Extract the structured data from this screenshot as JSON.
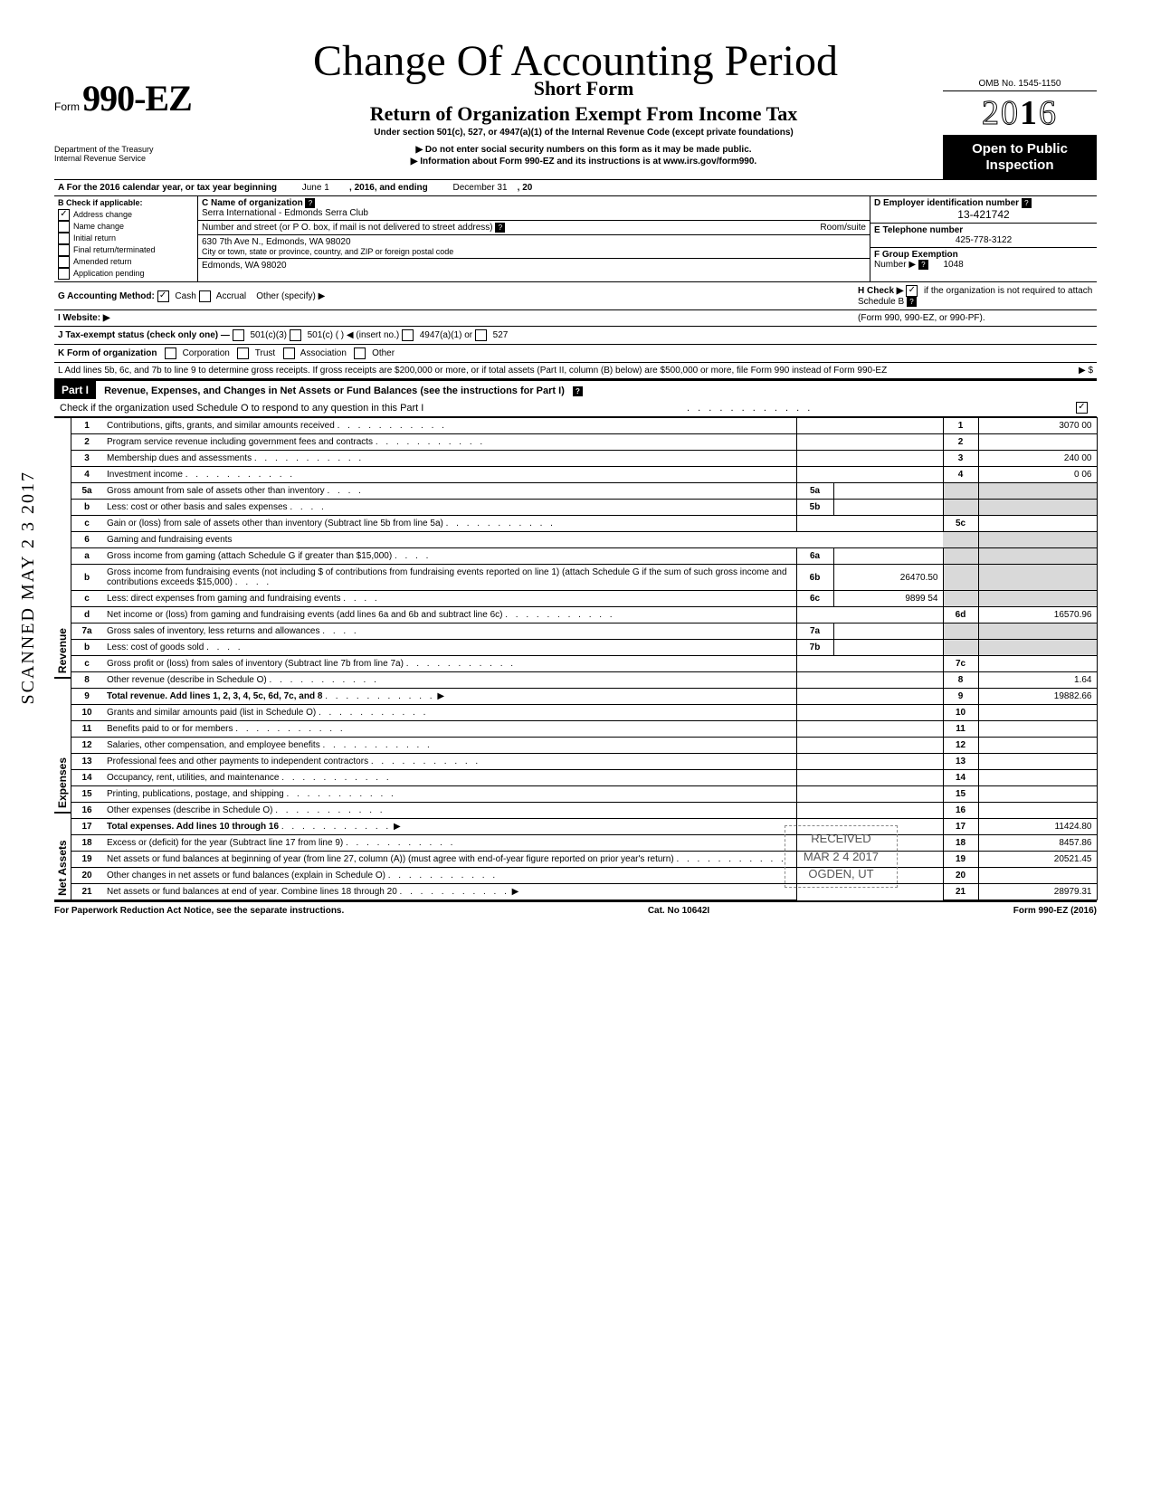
{
  "handwritten_title": "Change Of Accounting Period",
  "header": {
    "form_prefix": "Form",
    "form_number": "990-EZ",
    "dept1": "Department of the Treasury",
    "dept2": "Internal Revenue Service",
    "short_form": "Short Form",
    "main_title": "Return of Organization Exempt From Income Tax",
    "subtitle": "Under section 501(c), 527, or 4947(a)(1) of the Internal Revenue Code (except private foundations)",
    "arrow1": "▶ Do not enter social security numbers on this form as it may be made public.",
    "arrow2": "▶ Information about Form 990-EZ and its instructions is at www.irs.gov/form990.",
    "omb": "OMB No. 1545-1150",
    "year_outline_a": "20",
    "year_bold": "1",
    "year_outline_b": "6",
    "open1": "Open to Public",
    "open2": "Inspection"
  },
  "rowA": {
    "label": "A For the 2016 calendar year, or tax year beginning",
    "begin": "June 1",
    "mid": ", 2016, and ending",
    "end": "December 31",
    "yr": ", 20"
  },
  "colB": {
    "title": "B Check if applicable:",
    "items": [
      "Address change",
      "Name change",
      "Initial return",
      "Final return/terminated",
      "Amended return",
      "Application pending"
    ],
    "checked": [
      true,
      false,
      false,
      false,
      false,
      false
    ]
  },
  "colC": {
    "name_label": "C Name of organization",
    "name": "Serra International - Edmonds Serra Club",
    "street_label": "Number and street (or P O. box, if mail is not delivered to street address)",
    "room_label": "Room/suite",
    "street": "630 7th Ave N., Edmonds, WA 98020",
    "city_label": "City or town, state or province, country, and ZIP or foreign postal code",
    "city": "Edmonds, WA 98020"
  },
  "colD": {
    "ein_label": "D Employer identification number",
    "ein": "13-421742",
    "phone_label": "E Telephone number",
    "phone": "425-778-3122",
    "group_label": "F Group Exemption",
    "group_label2": "Number ▶",
    "group": "1048"
  },
  "rowG": {
    "label": "G Accounting Method:",
    "cash": "Cash",
    "accrual": "Accrual",
    "other": "Other (specify) ▶"
  },
  "rowH": {
    "label": "H Check ▶",
    "text": "if the organization is not required to attach Schedule B",
    "text2": "(Form 990, 990-EZ, or 990-PF)."
  },
  "rowI": {
    "label": "I Website: ▶"
  },
  "rowJ": {
    "label": "J Tax-exempt status (check only one) —",
    "opts": [
      "501(c)(3)",
      "501(c) (       ) ◀ (insert no.)",
      "4947(a)(1) or",
      "527"
    ]
  },
  "rowK": {
    "label": "K Form of organization",
    "opts": [
      "Corporation",
      "Trust",
      "Association",
      "Other"
    ]
  },
  "rowL": {
    "text": "L Add lines 5b, 6c, and 7b to line 9 to determine gross receipts. If gross receipts are $200,000 or more, or if total assets (Part II, column (B) below) are $500,000 or more, file Form 990 instead of Form 990-EZ",
    "arrow": "▶  $"
  },
  "part1": {
    "label": "Part I",
    "title": "Revenue, Expenses, and Changes in Net Assets or Fund Balances (see the instructions for Part I)",
    "check_line": "Check if the organization used Schedule O to respond to any question in this Part I",
    "checked": true
  },
  "sections": {
    "revenue": "Revenue",
    "expenses": "Expenses",
    "netassets": "Net Assets"
  },
  "lines": [
    {
      "n": "1",
      "d": "Contributions, gifts, grants, and similar amounts received",
      "ln": "1",
      "amt": "3070 00"
    },
    {
      "n": "2",
      "d": "Program service revenue including government fees and contracts",
      "ln": "2",
      "amt": ""
    },
    {
      "n": "3",
      "d": "Membership dues and assessments",
      "ln": "3",
      "amt": "240 00"
    },
    {
      "n": "4",
      "d": "Investment income",
      "ln": "4",
      "amt": "0 06"
    },
    {
      "n": "5a",
      "d": "Gross amount from sale of assets other than inventory",
      "mid": "5a",
      "midamt": ""
    },
    {
      "n": "b",
      "d": "Less: cost or other basis and sales expenses",
      "mid": "5b",
      "midamt": ""
    },
    {
      "n": "c",
      "d": "Gain or (loss) from sale of assets other than inventory (Subtract line 5b from line 5a)",
      "ln": "5c",
      "amt": ""
    },
    {
      "n": "6",
      "d": "Gaming and fundraising events"
    },
    {
      "n": "a",
      "d": "Gross income from gaming (attach Schedule G if greater than $15,000)",
      "mid": "6a",
      "midamt": ""
    },
    {
      "n": "b",
      "d": "Gross income from fundraising events (not including  $                      of contributions from fundraising events reported on line 1) (attach Schedule G if the sum of such gross income and contributions exceeds $15,000)",
      "mid": "6b",
      "midamt": "26470.50"
    },
    {
      "n": "c",
      "d": "Less: direct expenses from gaming and fundraising events",
      "mid": "6c",
      "midamt": "9899 54"
    },
    {
      "n": "d",
      "d": "Net income or (loss) from gaming and fundraising events (add lines 6a and 6b and subtract line 6c)",
      "ln": "6d",
      "amt": "16570.96"
    },
    {
      "n": "7a",
      "d": "Gross sales of inventory, less returns and allowances",
      "mid": "7a",
      "midamt": ""
    },
    {
      "n": "b",
      "d": "Less: cost of goods sold",
      "mid": "7b",
      "midamt": ""
    },
    {
      "n": "c",
      "d": "Gross profit or (loss) from sales of inventory (Subtract line 7b from line 7a)",
      "ln": "7c",
      "amt": ""
    },
    {
      "n": "8",
      "d": "Other revenue (describe in Schedule O)",
      "ln": "8",
      "amt": "1.64"
    },
    {
      "n": "9",
      "d": "Total revenue. Add lines 1, 2, 3, 4, 5c, 6d, 7c, and 8",
      "ln": "9",
      "amt": "19882.66",
      "bold": true,
      "arrow": true
    },
    {
      "n": "10",
      "d": "Grants and similar amounts paid (list in Schedule O)",
      "ln": "10",
      "amt": ""
    },
    {
      "n": "11",
      "d": "Benefits paid to or for members",
      "ln": "11",
      "amt": ""
    },
    {
      "n": "12",
      "d": "Salaries, other compensation, and employee benefits",
      "ln": "12",
      "amt": ""
    },
    {
      "n": "13",
      "d": "Professional fees and other payments to independent contractors",
      "ln": "13",
      "amt": ""
    },
    {
      "n": "14",
      "d": "Occupancy, rent, utilities, and maintenance",
      "ln": "14",
      "amt": ""
    },
    {
      "n": "15",
      "d": "Printing, publications, postage, and shipping",
      "ln": "15",
      "amt": ""
    },
    {
      "n": "16",
      "d": "Other expenses (describe in Schedule O)",
      "ln": "16",
      "amt": ""
    },
    {
      "n": "17",
      "d": "Total expenses. Add lines 10 through 16",
      "ln": "17",
      "amt": "11424.80",
      "bold": true,
      "arrow": true
    },
    {
      "n": "18",
      "d": "Excess or (deficit) for the year (Subtract line 17 from line 9)",
      "ln": "18",
      "amt": "8457.86"
    },
    {
      "n": "19",
      "d": "Net assets or fund balances at beginning of year (from line 27, column (A)) (must agree with end-of-year figure reported on prior year's return)",
      "ln": "19",
      "amt": "20521.45"
    },
    {
      "n": "20",
      "d": "Other changes in net assets or fund balances (explain in Schedule O)",
      "ln": "20",
      "amt": ""
    },
    {
      "n": "21",
      "d": "Net assets or fund balances at end of year. Combine lines 18 through 20",
      "ln": "21",
      "amt": "28979.31",
      "arrow": true
    }
  ],
  "footer": {
    "left": "For Paperwork Reduction Act Notice, see the separate instructions.",
    "mid": "Cat. No 10642I",
    "right": "Form 990-EZ (2016)"
  },
  "stamps": {
    "scanned": "SCANNED MAY 2 3 2017",
    "received1": "RECEIVED",
    "received2": "MAR 2 4 2017",
    "received3": "OGDEN, UT"
  }
}
